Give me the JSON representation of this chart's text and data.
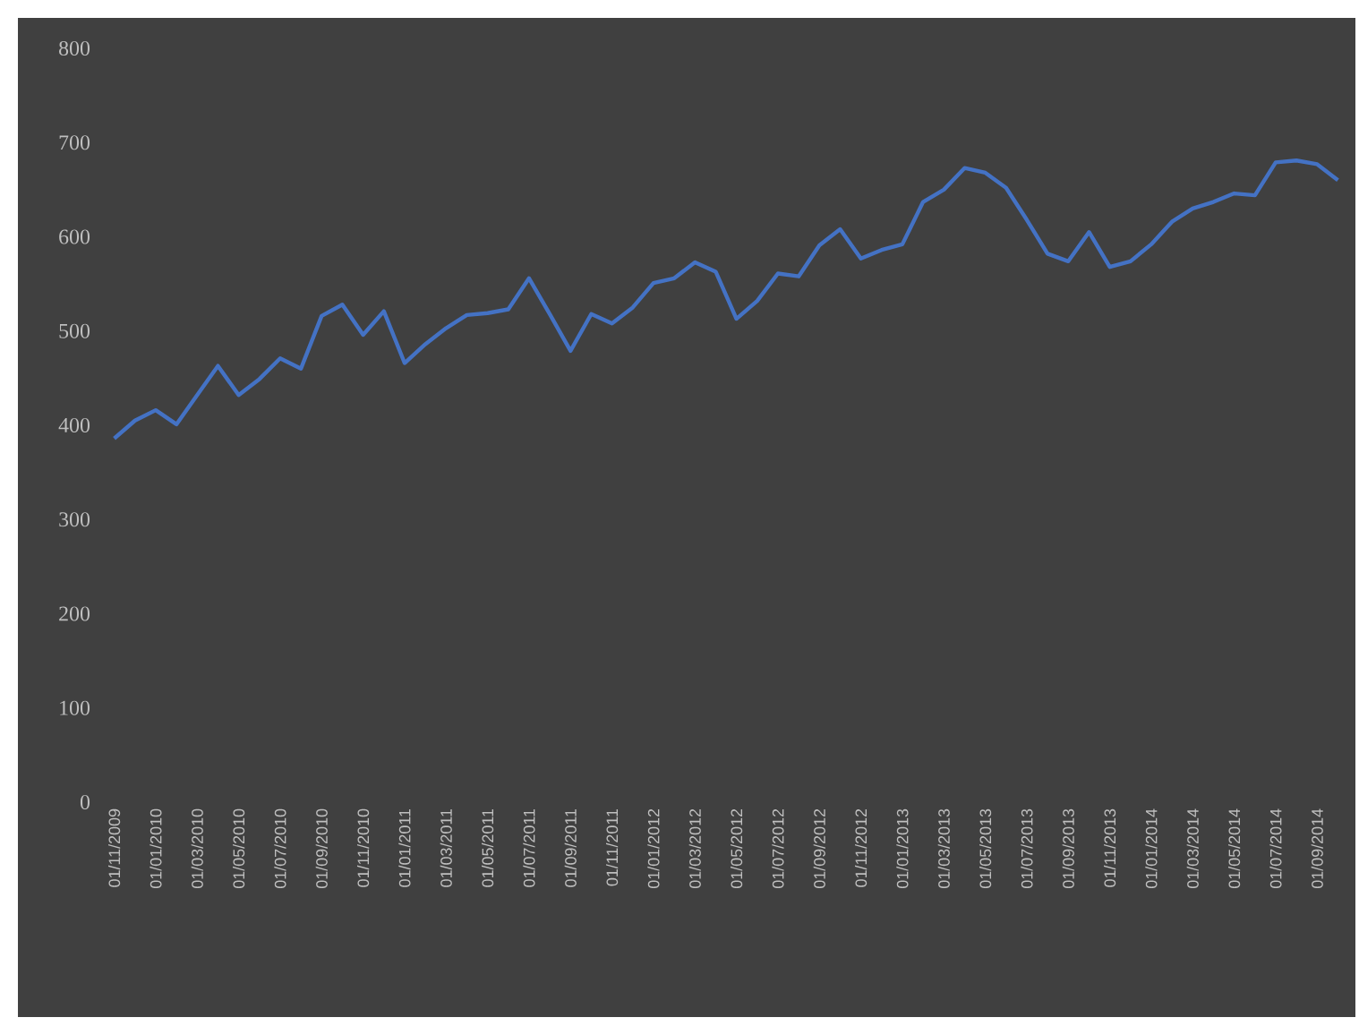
{
  "chart_data": {
    "type": "line",
    "categories": [
      "01/11/2009",
      null,
      "01/01/2010",
      null,
      "01/03/2010",
      null,
      "01/05/2010",
      null,
      "01/07/2010",
      null,
      "01/09/2010",
      null,
      "01/11/2010",
      null,
      "01/01/2011",
      null,
      "01/03/2011",
      null,
      "01/05/2011",
      null,
      "01/07/2011",
      null,
      "01/09/2011",
      null,
      "01/11/2011",
      null,
      "01/01/2012",
      null,
      "01/03/2012",
      null,
      "01/05/2012",
      null,
      "01/07/2012",
      null,
      "01/09/2012",
      null,
      "01/11/2012",
      null,
      "01/01/2013",
      null,
      "01/03/2013",
      null,
      "01/05/2013",
      null,
      "01/07/2013",
      null,
      "01/09/2013",
      null,
      "01/11/2013",
      null,
      "01/01/2014",
      null,
      "01/03/2014",
      null,
      "01/05/2014",
      null,
      "01/07/2014",
      null,
      "01/09/2014",
      null
    ],
    "series": [
      {
        "color": "#4472c4",
        "values": [
          386,
          405,
          416,
          401,
          432,
          463,
          432,
          449,
          471,
          460,
          516,
          528,
          496,
          521,
          466,
          486,
          503,
          517,
          519,
          523,
          556,
          518,
          479,
          518,
          508,
          525,
          551,
          556,
          573,
          563,
          513,
          532,
          561,
          558,
          591,
          608,
          577,
          586,
          592,
          637,
          650,
          673,
          668,
          652,
          618,
          582,
          574,
          605,
          568,
          574,
          592,
          616,
          630,
          637,
          646,
          644,
          679,
          681,
          677,
          660
        ]
      }
    ],
    "ylim": [
      0,
      800
    ],
    "yticks": [
      0,
      100,
      200,
      300,
      400,
      500,
      600,
      700,
      800
    ],
    "grid": false,
    "marker": "none",
    "line_style": "solid"
  }
}
